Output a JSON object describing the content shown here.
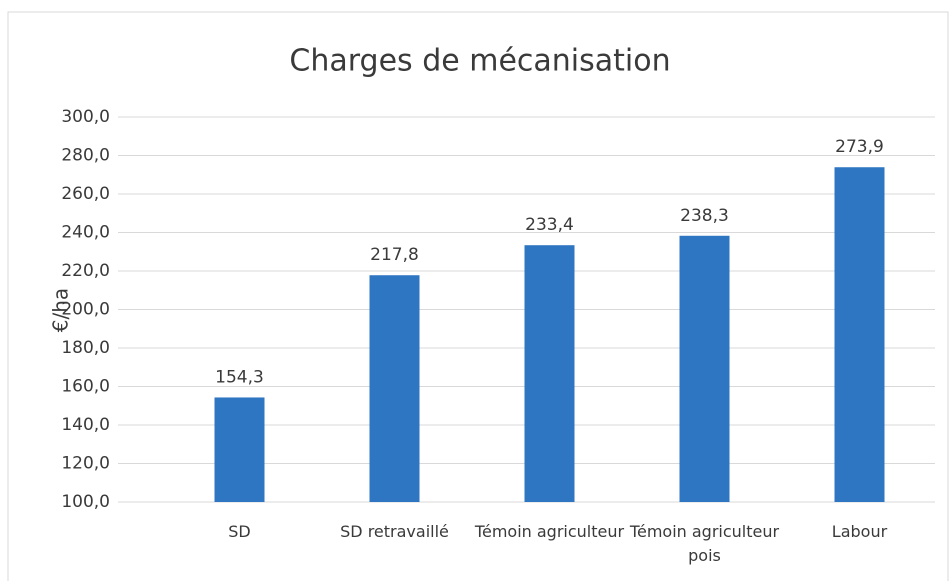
{
  "chart_data": {
    "type": "bar",
    "title": "Charges de mécanisation",
    "y_label": "€/ha",
    "categories": [
      "SD",
      "SD retravaillé",
      "Témoin agriculteur",
      "Témoin agriculteur pois",
      "Labour"
    ],
    "values": [
      154.3,
      217.8,
      233.4,
      238.3,
      273.9
    ],
    "value_labels": [
      "154,3",
      "217,8",
      "233,4",
      "238,3",
      "273,9"
    ],
    "color": "#2e75c2",
    "ylim": [
      100,
      300
    ],
    "yticks": [
      {
        "value": 100,
        "label": "100,0"
      },
      {
        "value": 120,
        "label": "120,0"
      },
      {
        "value": 140,
        "label": "140,0"
      },
      {
        "value": 160,
        "label": "160,0"
      },
      {
        "value": 180,
        "label": "180,0"
      },
      {
        "value": 200,
        "label": "200,0"
      },
      {
        "value": 220,
        "label": "220,0"
      },
      {
        "value": 240,
        "label": "240,0"
      },
      {
        "value": 260,
        "label": "260,0"
      },
      {
        "value": 280,
        "label": "280,0"
      },
      {
        "value": 300,
        "label": "300,0"
      }
    ],
    "grid": true
  }
}
